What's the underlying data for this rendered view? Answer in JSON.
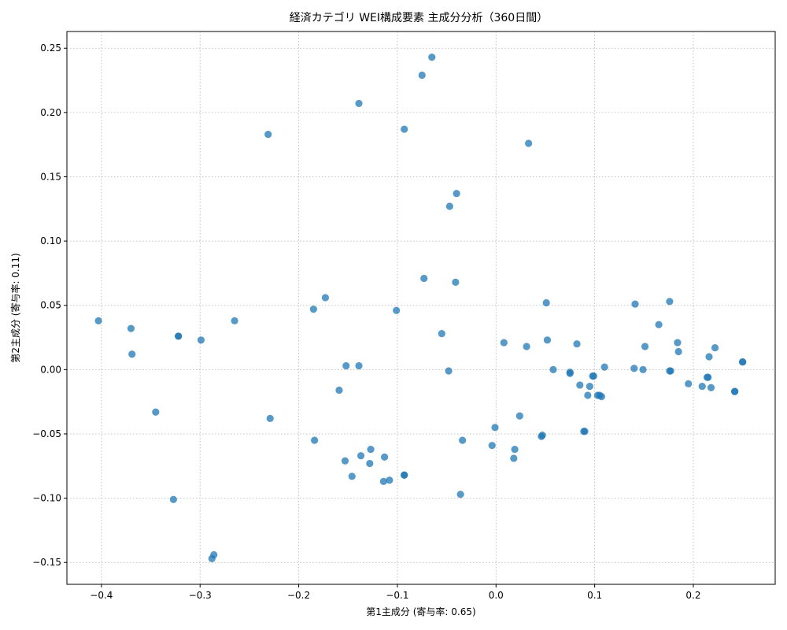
{
  "chart_data": {
    "type": "scatter",
    "title": "経済カテゴリ WEI構成要素 主成分分析（360日間）",
    "xlabel": "第1主成分 (寄与率: 0.65)",
    "ylabel": "第2主成分 (寄与率: 0.11)",
    "xlim": [
      -0.435,
      0.283
    ],
    "ylim": [
      -0.167,
      0.263
    ],
    "xticks": [
      -0.4,
      -0.3,
      -0.2,
      -0.1,
      0.0,
      0.1,
      0.2
    ],
    "xtick_labels": [
      "−0.4",
      "−0.3",
      "−0.2",
      "−0.1",
      "0.0",
      "0.1",
      "0.2"
    ],
    "yticks": [
      -0.15,
      -0.1,
      -0.05,
      0.0,
      0.05,
      0.1,
      0.15,
      0.2,
      0.25
    ],
    "ytick_labels": [
      "−0.15",
      "−0.10",
      "−0.05",
      "0.00",
      "0.05",
      "0.10",
      "0.15",
      "0.20",
      "0.25"
    ],
    "grid": true,
    "marker_color": "#1f77b4",
    "points": [
      {
        "x": -0.403,
        "y": 0.038
      },
      {
        "x": -0.37,
        "y": 0.032
      },
      {
        "x": -0.369,
        "y": 0.012
      },
      {
        "x": -0.345,
        "y": -0.033
      },
      {
        "x": -0.327,
        "y": -0.101
      },
      {
        "x": -0.322,
        "y": 0.026
      },
      {
        "x": -0.322,
        "y": 0.026
      },
      {
        "x": -0.299,
        "y": 0.023
      },
      {
        "x": -0.288,
        "y": -0.147
      },
      {
        "x": -0.286,
        "y": -0.144
      },
      {
        "x": -0.265,
        "y": 0.038
      },
      {
        "x": -0.231,
        "y": 0.183
      },
      {
        "x": -0.229,
        "y": -0.038
      },
      {
        "x": -0.185,
        "y": 0.047
      },
      {
        "x": -0.184,
        "y": -0.055
      },
      {
        "x": -0.173,
        "y": 0.056
      },
      {
        "x": -0.159,
        "y": -0.016
      },
      {
        "x": -0.153,
        "y": -0.071
      },
      {
        "x": -0.152,
        "y": 0.003
      },
      {
        "x": -0.146,
        "y": -0.083
      },
      {
        "x": -0.139,
        "y": 0.207
      },
      {
        "x": -0.139,
        "y": 0.003
      },
      {
        "x": -0.137,
        "y": -0.067
      },
      {
        "x": -0.128,
        "y": -0.073
      },
      {
        "x": -0.127,
        "y": -0.062
      },
      {
        "x": -0.114,
        "y": -0.087
      },
      {
        "x": -0.113,
        "y": -0.068
      },
      {
        "x": -0.108,
        "y": -0.086
      },
      {
        "x": -0.101,
        "y": 0.046
      },
      {
        "x": -0.093,
        "y": 0.187
      },
      {
        "x": -0.093,
        "y": -0.082
      },
      {
        "x": -0.093,
        "y": -0.082
      },
      {
        "x": -0.075,
        "y": 0.229
      },
      {
        "x": -0.073,
        "y": 0.071
      },
      {
        "x": -0.065,
        "y": 0.243
      },
      {
        "x": -0.055,
        "y": 0.028
      },
      {
        "x": -0.048,
        "y": -0.001
      },
      {
        "x": -0.047,
        "y": 0.127
      },
      {
        "x": -0.041,
        "y": 0.068
      },
      {
        "x": -0.04,
        "y": 0.137
      },
      {
        "x": -0.036,
        "y": -0.097
      },
      {
        "x": -0.034,
        "y": -0.055
      },
      {
        "x": -0.004,
        "y": -0.059
      },
      {
        "x": -0.001,
        "y": -0.045
      },
      {
        "x": 0.008,
        "y": 0.021
      },
      {
        "x": 0.018,
        "y": -0.069
      },
      {
        "x": 0.019,
        "y": -0.062
      },
      {
        "x": 0.024,
        "y": -0.036
      },
      {
        "x": 0.031,
        "y": 0.018
      },
      {
        "x": 0.033,
        "y": 0.176
      },
      {
        "x": 0.046,
        "y": -0.052
      },
      {
        "x": 0.047,
        "y": -0.051
      },
      {
        "x": 0.051,
        "y": 0.052
      },
      {
        "x": 0.052,
        "y": 0.023
      },
      {
        "x": 0.058,
        "y": 0.0
      },
      {
        "x": 0.075,
        "y": -0.002
      },
      {
        "x": 0.075,
        "y": -0.003
      },
      {
        "x": 0.082,
        "y": 0.02
      },
      {
        "x": 0.085,
        "y": -0.012
      },
      {
        "x": 0.089,
        "y": -0.048
      },
      {
        "x": 0.09,
        "y": -0.048
      },
      {
        "x": 0.093,
        "y": -0.02
      },
      {
        "x": 0.095,
        "y": -0.013
      },
      {
        "x": 0.098,
        "y": -0.005
      },
      {
        "x": 0.099,
        "y": -0.005
      },
      {
        "x": 0.103,
        "y": -0.02
      },
      {
        "x": 0.105,
        "y": -0.02
      },
      {
        "x": 0.107,
        "y": -0.021
      },
      {
        "x": 0.11,
        "y": 0.002
      },
      {
        "x": 0.14,
        "y": 0.001
      },
      {
        "x": 0.141,
        "y": 0.051
      },
      {
        "x": 0.149,
        "y": 0.0
      },
      {
        "x": 0.151,
        "y": 0.018
      },
      {
        "x": 0.165,
        "y": 0.035
      },
      {
        "x": 0.176,
        "y": 0.053
      },
      {
        "x": 0.176,
        "y": -0.001
      },
      {
        "x": 0.177,
        "y": -0.001
      },
      {
        "x": 0.184,
        "y": 0.021
      },
      {
        "x": 0.185,
        "y": 0.014
      },
      {
        "x": 0.195,
        "y": -0.011
      },
      {
        "x": 0.209,
        "y": -0.013
      },
      {
        "x": 0.214,
        "y": -0.006
      },
      {
        "x": 0.215,
        "y": -0.006
      },
      {
        "x": 0.216,
        "y": 0.01
      },
      {
        "x": 0.218,
        "y": -0.014
      },
      {
        "x": 0.222,
        "y": 0.017
      },
      {
        "x": 0.242,
        "y": -0.017
      },
      {
        "x": 0.242,
        "y": -0.017
      },
      {
        "x": 0.25,
        "y": 0.006
      },
      {
        "x": 0.25,
        "y": 0.006
      }
    ]
  }
}
